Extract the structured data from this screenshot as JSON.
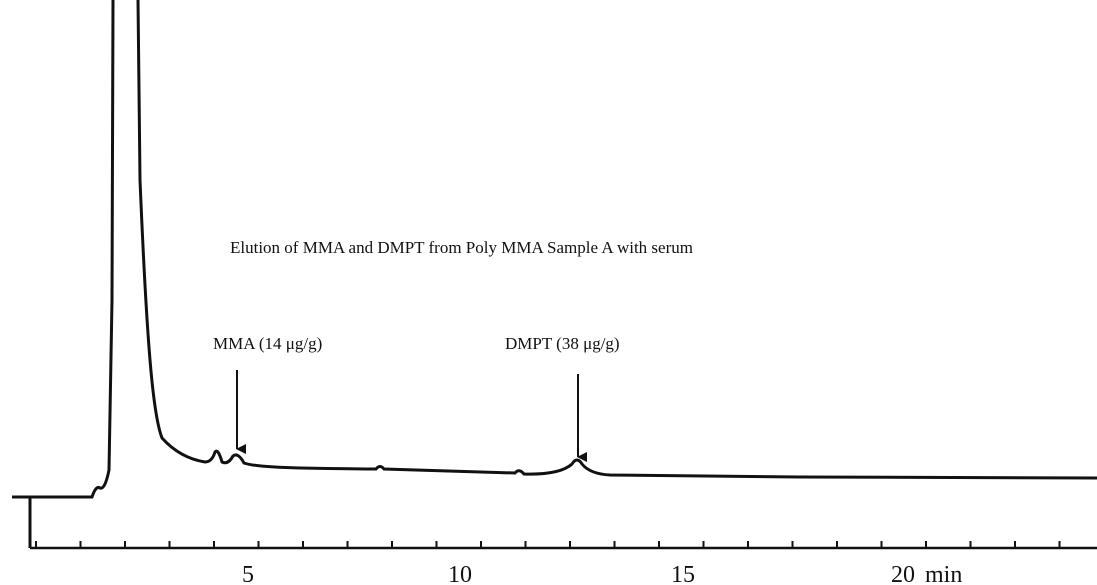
{
  "title": "Elution of MMA  and DMPT from  Poly MMA  Sample A with serum",
  "annotations": [
    {
      "label": "MMA (14 μg/g)"
    },
    {
      "label": "DMPT (38 μg/g)"
    }
  ],
  "axis": {
    "ticks": [
      "5",
      "10",
      "15",
      "20"
    ],
    "unit": "min"
  }
}
